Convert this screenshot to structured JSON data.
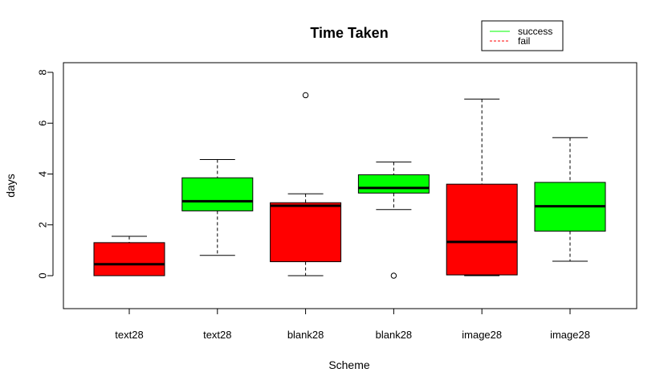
{
  "chart_data": {
    "type": "boxplot",
    "title": "Time Taken",
    "xlabel": "Scheme",
    "ylabel": "days",
    "ylim": [
      -1.3,
      8.4
    ],
    "yticks": [
      0,
      2,
      4,
      6,
      8
    ],
    "grid": false,
    "legend_position": "top-right",
    "categories": [
      "text28",
      "text28",
      "blank28",
      "blank28",
      "image28",
      "image28"
    ],
    "boxes": [
      {
        "label": "text28",
        "group": "fail",
        "min": 0.0,
        "q1": 0.0,
        "median": 0.45,
        "q3": 1.3,
        "max": 1.55,
        "outliers": []
      },
      {
        "label": "text28",
        "group": "success",
        "min": 0.8,
        "q1": 2.55,
        "median": 2.93,
        "q3": 3.85,
        "max": 4.57,
        "outliers": []
      },
      {
        "label": "blank28",
        "group": "fail",
        "min": 0.0,
        "q1": 0.55,
        "median": 2.75,
        "q3": 2.87,
        "max": 3.22,
        "outliers": [
          7.1
        ]
      },
      {
        "label": "blank28",
        "group": "success",
        "min": 2.6,
        "q1": 3.25,
        "median": 3.45,
        "q3": 3.97,
        "max": 4.47,
        "outliers": [
          0.0
        ]
      },
      {
        "label": "image28",
        "group": "fail",
        "min": 0.0,
        "q1": 0.03,
        "median": 1.33,
        "q3": 3.6,
        "max": 6.95,
        "outliers": []
      },
      {
        "label": "image28",
        "group": "success",
        "min": 0.57,
        "q1": 1.75,
        "median": 2.73,
        "q3": 3.67,
        "max": 5.43,
        "outliers": []
      }
    ],
    "legend": [
      {
        "label": "success",
        "color": "#00ff00",
        "line": "solid"
      },
      {
        "label": "fail",
        "color": "#ff0000",
        "line": "dashed"
      }
    ],
    "colors": {
      "success": "#00ff00",
      "fail": "#ff0000"
    }
  }
}
